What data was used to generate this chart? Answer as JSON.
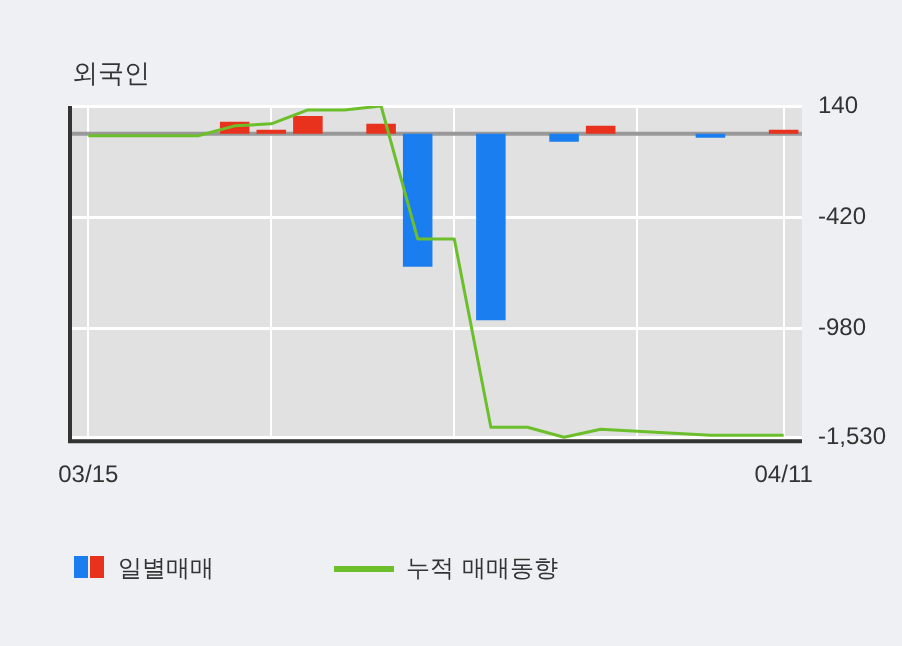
{
  "chart_data": {
    "type": "bar",
    "title": "외국인",
    "categories": [
      "03/15",
      null,
      null,
      null,
      null,
      null,
      null,
      null,
      null,
      null,
      null,
      null,
      null,
      null,
      null,
      null,
      null,
      null,
      null,
      "04/11"
    ],
    "series": [
      {
        "name": "일별매매",
        "colors": [
          "#e8321e",
          "#e8321e",
          "#e8321e",
          "#e8321e",
          "#e8321e",
          "#e8321e",
          "#e8321e",
          "#e8321e",
          "#e8321e",
          "#1b7ef0",
          "#e8321e",
          "#1b7ef0",
          "#e8321e",
          "#1b7ef0",
          "#e8321e",
          "#e8321e",
          "#e8321e",
          "#1b7ef0",
          "#e8321e",
          "#e8321e"
        ],
        "values": [
          0,
          0,
          0,
          0,
          60,
          20,
          90,
          0,
          50,
          -670,
          0,
          -940,
          0,
          -40,
          40,
          0,
          0,
          -20,
          0,
          20
        ]
      },
      {
        "name": "누적 매매동향",
        "type": "line",
        "color": "#6cbf2a",
        "values": [
          -10,
          -10,
          -10,
          -10,
          40,
          50,
          120,
          120,
          140,
          -530,
          -530,
          -1480,
          -1480,
          -1530,
          -1490,
          -1500,
          -1510,
          -1520,
          -1520,
          -1520
        ]
      }
    ],
    "ylim": [
      -1550,
      140
    ],
    "yticks": [
      140,
      -420,
      -980,
      {
        "value": -1530,
        "label": "-1,530"
      }
    ],
    "ref_lines": [
      {
        "axis": "y",
        "value": 0,
        "color": "#999999"
      }
    ],
    "grid": true,
    "legend": "bottom",
    "marker": "none",
    "line_style": "solid"
  }
}
